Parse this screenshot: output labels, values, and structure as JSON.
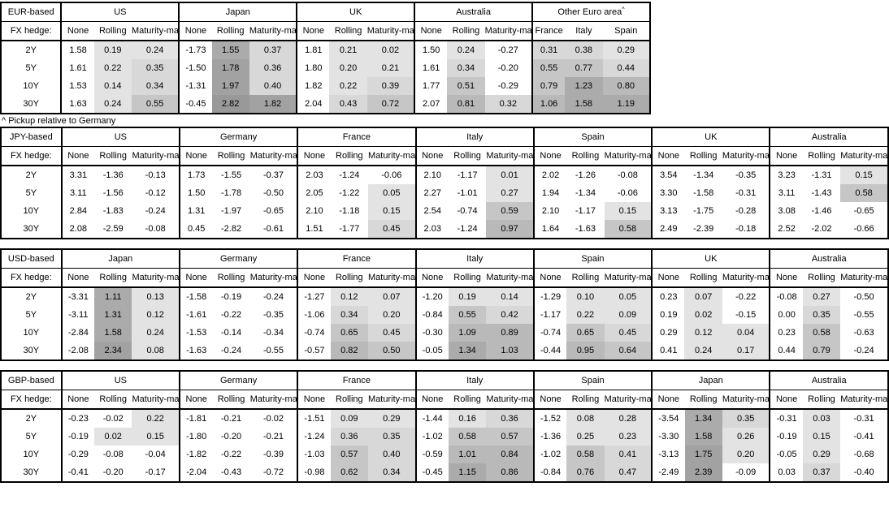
{
  "labels": {
    "fx_hedge": "FX hedge:",
    "tenors": [
      "2Y",
      "5Y",
      "10Y",
      "30Y"
    ],
    "hedge_columns": [
      "None",
      "Rolling",
      "Maturity-matched"
    ]
  },
  "footnote": {
    "marker": "^",
    "text": "^ Pickup relative to Germany"
  },
  "shading": {
    "negative_color": "#ffffff",
    "bins": [
      {
        "lt": 0.3,
        "color": "#e3e3e3"
      },
      {
        "lt": 0.5,
        "color": "#d8d8d8"
      },
      {
        "lt": 0.8,
        "color": "#c6c6c6"
      },
      {
        "lt": 1.1,
        "color": "#b9b9b9"
      },
      {
        "lt": 1.7,
        "color": "#ababab"
      },
      {
        "lt": 2.5,
        "color": "#a2a2a2"
      }
    ],
    "max_color": "#999999"
  },
  "tables": [
    {
      "base_label": "EUR-based",
      "groups": [
        {
          "name": "US",
          "columns": [
            "None",
            "Rolling",
            "Maturity-matched"
          ],
          "shaded_columns": [
            1,
            2
          ],
          "rows": [
            [
              1.58,
              0.19,
              0.24
            ],
            [
              1.61,
              0.22,
              0.35
            ],
            [
              1.53,
              0.14,
              0.34
            ],
            [
              1.63,
              0.24,
              0.55
            ]
          ]
        },
        {
          "name": "Japan",
          "columns": [
            "None",
            "Rolling",
            "Maturity-matched"
          ],
          "shaded_columns": [
            1,
            2
          ],
          "rows": [
            [
              -1.73,
              1.55,
              0.37
            ],
            [
              -1.5,
              1.78,
              0.36
            ],
            [
              -1.31,
              1.97,
              0.4
            ],
            [
              -0.45,
              2.82,
              1.82
            ]
          ]
        },
        {
          "name": "UK",
          "columns": [
            "None",
            "Rolling",
            "Maturity-matched"
          ],
          "shaded_columns": [
            1,
            2
          ],
          "rows": [
            [
              1.81,
              0.21,
              0.02
            ],
            [
              1.8,
              0.2,
              0.21
            ],
            [
              1.82,
              0.22,
              0.39
            ],
            [
              2.04,
              0.43,
              0.72
            ]
          ]
        },
        {
          "name": "Australia",
          "columns": [
            "None",
            "Rolling",
            "Maturity-matched"
          ],
          "shaded_columns": [
            1,
            2
          ],
          "rows": [
            [
              1.5,
              0.24,
              -0.27
            ],
            [
              1.61,
              0.34,
              -0.2
            ],
            [
              1.77,
              0.51,
              -0.29
            ],
            [
              2.07,
              0.81,
              0.32
            ]
          ]
        },
        {
          "name": "Other Euro area",
          "note_mark": "^",
          "columns": [
            "France",
            "Italy",
            "Spain"
          ],
          "shaded_columns": [
            0,
            1,
            2
          ],
          "rows": [
            [
              0.31,
              0.38,
              0.29
            ],
            [
              0.55,
              0.77,
              0.44
            ],
            [
              0.79,
              1.23,
              0.8
            ],
            [
              1.06,
              1.58,
              1.19
            ]
          ]
        }
      ]
    },
    {
      "base_label": "JPY-based",
      "groups": [
        {
          "name": "US",
          "columns": [
            "None",
            "Rolling",
            "Maturity-matched"
          ],
          "shaded_columns": [
            1,
            2
          ],
          "rows": [
            [
              3.31,
              -1.36,
              -0.13
            ],
            [
              3.11,
              -1.56,
              -0.12
            ],
            [
              2.84,
              -1.83,
              -0.24
            ],
            [
              2.08,
              -2.59,
              -0.08
            ]
          ]
        },
        {
          "name": "Germany",
          "columns": [
            "None",
            "Rolling",
            "Maturity-matched"
          ],
          "shaded_columns": [
            1,
            2
          ],
          "rows": [
            [
              1.73,
              -1.55,
              -0.37
            ],
            [
              1.5,
              -1.78,
              -0.5
            ],
            [
              1.31,
              -1.97,
              -0.65
            ],
            [
              0.45,
              -2.82,
              -0.61
            ]
          ]
        },
        {
          "name": "France",
          "columns": [
            "None",
            "Rolling",
            "Maturity-matched"
          ],
          "shaded_columns": [
            1,
            2
          ],
          "rows": [
            [
              2.03,
              -1.24,
              -0.06
            ],
            [
              2.05,
              -1.22,
              0.05
            ],
            [
              2.1,
              -1.18,
              0.15
            ],
            [
              1.51,
              -1.77,
              0.45
            ]
          ]
        },
        {
          "name": "Italy",
          "columns": [
            "None",
            "Rolling",
            "Maturity-matched"
          ],
          "shaded_columns": [
            1,
            2
          ],
          "rows": [
            [
              2.1,
              -1.17,
              0.01
            ],
            [
              2.27,
              -1.01,
              0.27
            ],
            [
              2.54,
              -0.74,
              0.59
            ],
            [
              2.03,
              -1.24,
              0.97
            ]
          ]
        },
        {
          "name": "Spain",
          "columns": [
            "None",
            "Rolling",
            "Maturity-matched"
          ],
          "shaded_columns": [
            1,
            2
          ],
          "rows": [
            [
              2.02,
              -1.26,
              -0.08
            ],
            [
              1.94,
              -1.34,
              -0.06
            ],
            [
              2.1,
              -1.17,
              0.15
            ],
            [
              1.64,
              -1.63,
              0.58
            ]
          ]
        },
        {
          "name": "UK",
          "columns": [
            "None",
            "Rolling",
            "Maturity-matched"
          ],
          "shaded_columns": [
            1,
            2
          ],
          "rows": [
            [
              3.54,
              -1.34,
              -0.35
            ],
            [
              3.3,
              -1.58,
              -0.31
            ],
            [
              3.13,
              -1.75,
              -0.28
            ],
            [
              2.49,
              -2.39,
              -0.18
            ]
          ]
        },
        {
          "name": "Australia",
          "columns": [
            "None",
            "Rolling",
            "Maturity-matched"
          ],
          "shaded_columns": [
            1,
            2
          ],
          "rows": [
            [
              3.23,
              -1.31,
              0.15
            ],
            [
              3.11,
              -1.43,
              0.58
            ],
            [
              3.08,
              -1.46,
              -0.65
            ],
            [
              2.52,
              -2.02,
              -0.66
            ]
          ]
        }
      ]
    },
    {
      "base_label": "USD-based",
      "groups": [
        {
          "name": "Japan",
          "columns": [
            "None",
            "Rolling",
            "Maturity-matched"
          ],
          "shaded_columns": [
            1,
            2
          ],
          "rows": [
            [
              -3.31,
              1.11,
              0.13
            ],
            [
              -3.11,
              1.31,
              0.12
            ],
            [
              -2.84,
              1.58,
              0.24
            ],
            [
              -2.08,
              2.34,
              0.08
            ]
          ]
        },
        {
          "name": "Germany",
          "columns": [
            "None",
            "Rolling",
            "Maturity-matched"
          ],
          "shaded_columns": [
            1,
            2
          ],
          "rows": [
            [
              -1.58,
              -0.19,
              -0.24
            ],
            [
              -1.61,
              -0.22,
              -0.35
            ],
            [
              -1.53,
              -0.14,
              -0.34
            ],
            [
              -1.63,
              -0.24,
              -0.55
            ]
          ]
        },
        {
          "name": "France",
          "columns": [
            "None",
            "Rolling",
            "Maturity-matched"
          ],
          "shaded_columns": [
            1,
            2
          ],
          "rows": [
            [
              -1.27,
              0.12,
              0.07
            ],
            [
              -1.06,
              0.34,
              0.2
            ],
            [
              -0.74,
              0.65,
              0.45
            ],
            [
              -0.57,
              0.82,
              0.5
            ]
          ]
        },
        {
          "name": "Italy",
          "columns": [
            "None",
            "Rolling",
            "Maturity-matched"
          ],
          "shaded_columns": [
            1,
            2
          ],
          "rows": [
            [
              -1.2,
              0.19,
              0.14
            ],
            [
              -0.84,
              0.55,
              0.42
            ],
            [
              -0.3,
              1.09,
              0.89
            ],
            [
              -0.05,
              1.34,
              1.03
            ]
          ]
        },
        {
          "name": "Spain",
          "columns": [
            "None",
            "Rolling",
            "Maturity-matched"
          ],
          "shaded_columns": [
            1,
            2
          ],
          "rows": [
            [
              -1.29,
              0.1,
              0.05
            ],
            [
              -1.17,
              0.22,
              0.09
            ],
            [
              -0.74,
              0.65,
              0.45
            ],
            [
              -0.44,
              0.95,
              0.64
            ]
          ]
        },
        {
          "name": "UK",
          "columns": [
            "None",
            "Rolling",
            "Maturity-matched"
          ],
          "shaded_columns": [
            1,
            2
          ],
          "rows": [
            [
              0.23,
              0.07,
              -0.22
            ],
            [
              0.19,
              0.02,
              -0.15
            ],
            [
              0.29,
              0.12,
              0.04
            ],
            [
              0.41,
              0.24,
              0.17
            ]
          ]
        },
        {
          "name": "Australia",
          "columns": [
            "None",
            "Rolling",
            "Maturity-matched"
          ],
          "shaded_columns": [
            1,
            2
          ],
          "rows": [
            [
              -0.08,
              0.27,
              -0.5
            ],
            [
              0.0,
              0.35,
              -0.55
            ],
            [
              0.23,
              0.58,
              -0.63
            ],
            [
              0.44,
              0.79,
              -0.24
            ]
          ]
        }
      ]
    },
    {
      "base_label": "GBP-based",
      "groups": [
        {
          "name": "US",
          "columns": [
            "None",
            "Rolling",
            "Maturity-matched"
          ],
          "shaded_columns": [
            1,
            2
          ],
          "rows": [
            [
              -0.23,
              -0.02,
              0.22
            ],
            [
              -0.19,
              0.02,
              0.15
            ],
            [
              -0.29,
              -0.08,
              -0.04
            ],
            [
              -0.41,
              -0.2,
              -0.17
            ]
          ]
        },
        {
          "name": "Germany",
          "columns": [
            "None",
            "Rolling",
            "Maturity-matched"
          ],
          "shaded_columns": [
            1,
            2
          ],
          "rows": [
            [
              -1.81,
              -0.21,
              -0.02
            ],
            [
              -1.8,
              -0.2,
              -0.21
            ],
            [
              -1.82,
              -0.22,
              -0.39
            ],
            [
              -2.04,
              -0.43,
              -0.72
            ]
          ]
        },
        {
          "name": "France",
          "columns": [
            "None",
            "Rolling",
            "Maturity-matched"
          ],
          "shaded_columns": [
            1,
            2
          ],
          "rows": [
            [
              -1.51,
              0.09,
              0.29
            ],
            [
              -1.24,
              0.36,
              0.35
            ],
            [
              -1.03,
              0.57,
              0.4
            ],
            [
              -0.98,
              0.62,
              0.34
            ]
          ]
        },
        {
          "name": "Italy",
          "columns": [
            "None",
            "Rolling",
            "Maturity-matched"
          ],
          "shaded_columns": [
            1,
            2
          ],
          "rows": [
            [
              -1.44,
              0.16,
              0.36
            ],
            [
              -1.02,
              0.58,
              0.57
            ],
            [
              -0.59,
              1.01,
              0.84
            ],
            [
              -0.45,
              1.15,
              0.86
            ]
          ]
        },
        {
          "name": "Spain",
          "columns": [
            "None",
            "Rolling",
            "Maturity-matched"
          ],
          "shaded_columns": [
            1,
            2
          ],
          "rows": [
            [
              -1.52,
              0.08,
              0.28
            ],
            [
              -1.36,
              0.25,
              0.23
            ],
            [
              -1.02,
              0.58,
              0.41
            ],
            [
              -0.84,
              0.76,
              0.47
            ]
          ]
        },
        {
          "name": "Japan",
          "columns": [
            "None",
            "Rolling",
            "Maturity-matched"
          ],
          "shaded_columns": [
            1,
            2
          ],
          "rows": [
            [
              -3.54,
              1.34,
              0.35
            ],
            [
              -3.3,
              1.58,
              0.26
            ],
            [
              -3.13,
              1.75,
              0.2
            ],
            [
              -2.49,
              2.39,
              -0.09
            ]
          ]
        },
        {
          "name": "Australia",
          "columns": [
            "None",
            "Rolling",
            "Maturity-matched"
          ],
          "shaded_columns": [
            1,
            2
          ],
          "rows": [
            [
              -0.31,
              0.03,
              -0.31
            ],
            [
              -0.19,
              0.15,
              -0.41
            ],
            [
              -0.05,
              0.29,
              -0.68
            ],
            [
              0.03,
              0.37,
              -0.4
            ]
          ]
        }
      ]
    }
  ]
}
